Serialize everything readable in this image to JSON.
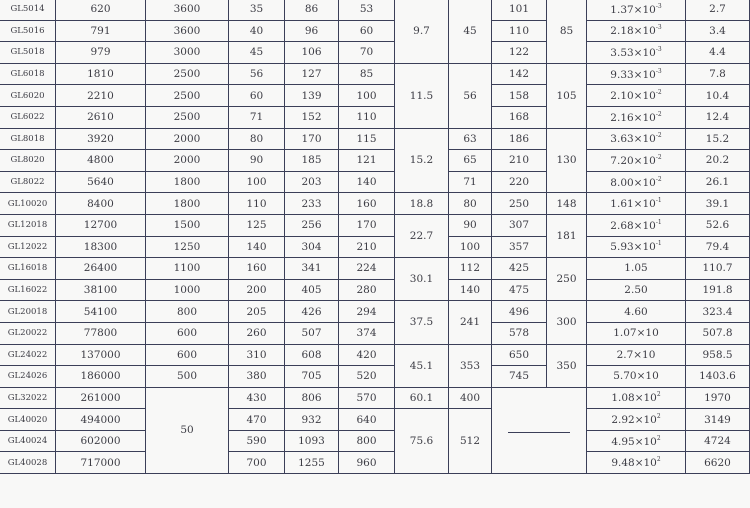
{
  "rows": [
    [
      "GL5014",
      "620",
      "3600",
      "35",
      "86",
      "53",
      {
        "v": "9.7",
        "rs": 3
      },
      {
        "v": "45",
        "rs": 3
      },
      "101",
      {
        "v": "85",
        "rs": 3
      },
      {
        "m": "1.37×10",
        "e": "-3"
      },
      "2.7"
    ],
    [
      "GL5016",
      "791",
      "3600",
      "40",
      "96",
      "60",
      "110",
      {
        "m": "2.18×10",
        "e": "-3"
      },
      "3.4"
    ],
    [
      "GL5018",
      "979",
      "3000",
      "45",
      "106",
      "70",
      "122",
      {
        "m": "3.53×10",
        "e": "-3"
      },
      "4.4"
    ],
    [
      "GL6018",
      "1810",
      "2500",
      "56",
      "127",
      "85",
      {
        "v": "11.5",
        "rs": 3
      },
      {
        "v": "56",
        "rs": 3
      },
      "142",
      {
        "v": "105",
        "rs": 3
      },
      {
        "m": "9.33×10",
        "e": "-3"
      },
      "7.8"
    ],
    [
      "GL6020",
      "2210",
      "2500",
      "60",
      "139",
      "100",
      "158",
      {
        "m": "2.10×10",
        "e": "-2"
      },
      "10.4"
    ],
    [
      "GL6022",
      "2610",
      "2500",
      "71",
      "152",
      "110",
      "168",
      {
        "m": "2.16×10",
        "e": "-2"
      },
      "12.4"
    ],
    [
      "GL8018",
      "3920",
      "2000",
      "80",
      "170",
      "115",
      {
        "v": "15.2",
        "rs": 3
      },
      "63",
      "186",
      {
        "v": "130",
        "rs": 3
      },
      {
        "m": "3.63×10",
        "e": "-2"
      },
      "15.2"
    ],
    [
      "GL8020",
      "4800",
      "2000",
      "90",
      "185",
      "121",
      "65",
      "210",
      {
        "m": "7.20×10",
        "e": "-2"
      },
      "20.2"
    ],
    [
      "GL8022",
      "5640",
      "1800",
      "100",
      "203",
      "140",
      "71",
      "220",
      {
        "m": "8.00×10",
        "e": "-2"
      },
      "26.1"
    ],
    [
      "GL10020",
      "8400",
      "1800",
      "110",
      "233",
      "160",
      "18.8",
      "80",
      "250",
      "148",
      {
        "m": "1.61×10",
        "e": "-1"
      },
      "39.1"
    ],
    [
      "GL12018",
      "12700",
      "1500",
      "125",
      "256",
      "170",
      {
        "v": "22.7",
        "rs": 2
      },
      "90",
      "307",
      {
        "v": "181",
        "rs": 2
      },
      {
        "m": "2.68×10",
        "e": "-1"
      },
      "52.6"
    ],
    [
      "GL12022",
      "18300",
      "1250",
      "140",
      "304",
      "210",
      "100",
      "357",
      {
        "m": "5.93×10",
        "e": "-1"
      },
      "79.4"
    ],
    [
      "GL16018",
      "26400",
      "1100",
      "160",
      "341",
      "224",
      {
        "v": "30.1",
        "rs": 2
      },
      "112",
      "425",
      {
        "v": "250",
        "rs": 2
      },
      "1.05",
      "110.7"
    ],
    [
      "GL16022",
      "38100",
      "1000",
      "200",
      "405",
      "280",
      "140",
      "475",
      "2.50",
      "191.8"
    ],
    [
      "GL20018",
      "54100",
      "800",
      "205",
      "426",
      "294",
      {
        "v": "37.5",
        "rs": 2
      },
      {
        "v": "241",
        "rs": 2
      },
      "496",
      {
        "v": "300",
        "rs": 2
      },
      "4.60",
      "323.4"
    ],
    [
      "GL20022",
      "77800",
      "600",
      "260",
      "507",
      "374",
      "578",
      "1.07×10",
      "507.8"
    ],
    [
      "GL24022",
      "137000",
      "600",
      "310",
      "608",
      "420",
      {
        "v": "45.1",
        "rs": 2
      },
      {
        "v": "353",
        "rs": 2
      },
      "650",
      {
        "v": "350",
        "rs": 2
      },
      "2.7×10",
      "958.5"
    ],
    [
      "GL24026",
      "186000",
      "500",
      "380",
      "705",
      "520",
      "745",
      "5.70×10",
      "1403.6"
    ],
    [
      "GL32022",
      "261000",
      {
        "v": "50",
        "rs": 4
      },
      "430",
      "806",
      "570",
      "60.1",
      "400",
      {
        "dash": true,
        "rs": 4,
        "cs": 2
      },
      {
        "m": "1.08×10",
        "e": "2"
      },
      "1970"
    ],
    [
      "GL40020",
      "494000",
      "470",
      "932",
      "640",
      {
        "v": "75.6",
        "rs": 3
      },
      {
        "v": "512",
        "rs": 3
      },
      {
        "m": "2.92×10",
        "e": "2"
      },
      "3149"
    ],
    [
      "GL40024",
      "602000",
      "590",
      "1093",
      "800",
      {
        "m": "4.95×10",
        "e": "2"
      },
      "4724"
    ],
    [
      "GL40028",
      "717000",
      "700",
      "1255",
      "960",
      {
        "m": "9.48×10",
        "e": "2"
      },
      "6620"
    ]
  ]
}
